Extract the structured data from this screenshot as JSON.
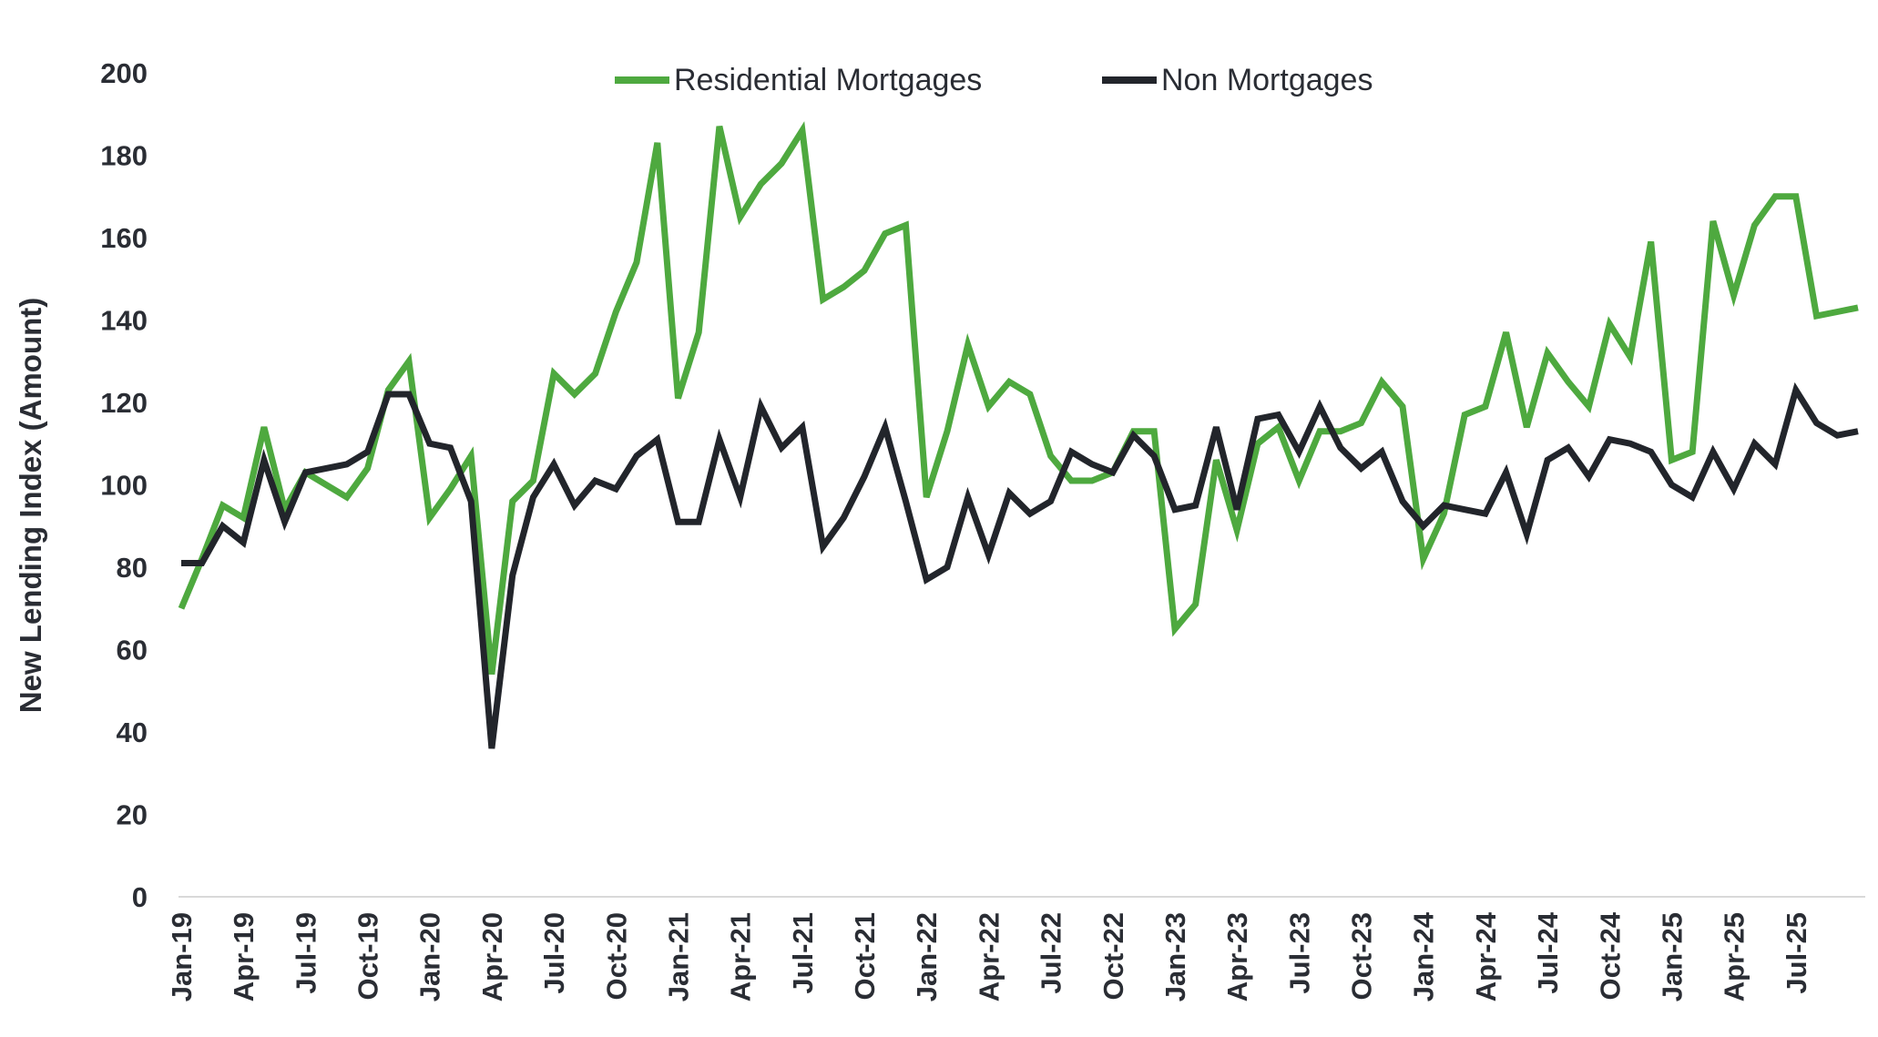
{
  "chart_data": {
    "type": "line",
    "title": "",
    "xlabel": "",
    "ylabel": "New Lending Index (Amount)",
    "ylim": [
      0,
      200
    ],
    "yticks": [
      0,
      20,
      40,
      60,
      80,
      100,
      120,
      140,
      160,
      180,
      200
    ],
    "legend_position": "top-center",
    "grid": false,
    "x_tick_labels": [
      "Jan-19",
      "Apr-19",
      "Jul-19",
      "Oct-19",
      "Jan-20",
      "Apr-20",
      "Jul-20",
      "Oct-20",
      "Jan-21",
      "Apr-21",
      "Jul-21",
      "Oct-21",
      "Jan-22",
      "Apr-22",
      "Jul-22",
      "Oct-22",
      "Jan-23",
      "Apr-23",
      "Jul-23",
      "Oct-23",
      "Jan-24",
      "Apr-24",
      "Jul-24",
      "Oct-24",
      "Jan-25",
      "Apr-25",
      "Jul-25"
    ],
    "x": [
      "Jan-19",
      "Feb-19",
      "Mar-19",
      "Apr-19",
      "May-19",
      "Jun-19",
      "Jul-19",
      "Aug-19",
      "Sep-19",
      "Oct-19",
      "Nov-19",
      "Dec-19",
      "Jan-20",
      "Feb-20",
      "Mar-20",
      "Apr-20",
      "May-20",
      "Jun-20",
      "Jul-20",
      "Aug-20",
      "Sep-20",
      "Oct-20",
      "Nov-20",
      "Dec-20",
      "Jan-21",
      "Feb-21",
      "Mar-21",
      "Apr-21",
      "May-21",
      "Jun-21",
      "Jul-21",
      "Aug-21",
      "Sep-21",
      "Oct-21",
      "Nov-21",
      "Dec-21",
      "Jan-22",
      "Feb-22",
      "Mar-22",
      "Apr-22",
      "May-22",
      "Jun-22",
      "Jul-22",
      "Aug-22",
      "Sep-22",
      "Oct-22",
      "Nov-22",
      "Dec-22",
      "Jan-23",
      "Feb-23",
      "Mar-23",
      "Apr-23",
      "May-23",
      "Jun-23",
      "Jul-23",
      "Aug-23",
      "Sep-23",
      "Oct-23",
      "Nov-23",
      "Dec-23",
      "Jan-24",
      "Feb-24",
      "Mar-24",
      "Apr-24",
      "May-24",
      "Jun-24",
      "Jul-24",
      "Aug-24",
      "Sep-24",
      "Oct-24",
      "Nov-24",
      "Dec-24",
      "Jan-25",
      "Feb-25",
      "Mar-25",
      "Apr-25",
      "May-25",
      "Jun-25",
      "Jul-25",
      "Aug-25",
      "Sep-25",
      "Oct-25"
    ],
    "series": [
      {
        "name": "Residential Mortgages",
        "color": "#4ea93f",
        "values": [
          70,
          82,
          95,
          92,
          114,
          94,
          103,
          100,
          97,
          104,
          123,
          130,
          92,
          99,
          107,
          54,
          96,
          101,
          127,
          122,
          127,
          142,
          154,
          183,
          121,
          137,
          187,
          165,
          173,
          178,
          186,
          145,
          148,
          152,
          161,
          163,
          97,
          113,
          134,
          119,
          125,
          122,
          107,
          101,
          101,
          103,
          113,
          113,
          65,
          71,
          106,
          89,
          110,
          114,
          101,
          113,
          113,
          115,
          125,
          119,
          82,
          93,
          117,
          119,
          137,
          114,
          132,
          125,
          119,
          139,
          131,
          159,
          106,
          108,
          164,
          146,
          163,
          170,
          170,
          141,
          142,
          143
        ]
      },
      {
        "name": "Non Mortgages",
        "color": "#22252b",
        "values": [
          81,
          81,
          90,
          86,
          106,
          91,
          103,
          104,
          105,
          108,
          122,
          122,
          110,
          109,
          96,
          36,
          78,
          97,
          105,
          95,
          101,
          99,
          107,
          111,
          91,
          91,
          111,
          97,
          119,
          109,
          114,
          85,
          92,
          102,
          114,
          96,
          77,
          80,
          97,
          83,
          98,
          93,
          96,
          108,
          105,
          103,
          112,
          107,
          94,
          95,
          114,
          94,
          116,
          117,
          108,
          119,
          109,
          104,
          108,
          96,
          90,
          95,
          94,
          93,
          103,
          88,
          106,
          109,
          102,
          111,
          110,
          108,
          100,
          97,
          108,
          99,
          110,
          105,
          123,
          115,
          112,
          113
        ]
      }
    ]
  }
}
